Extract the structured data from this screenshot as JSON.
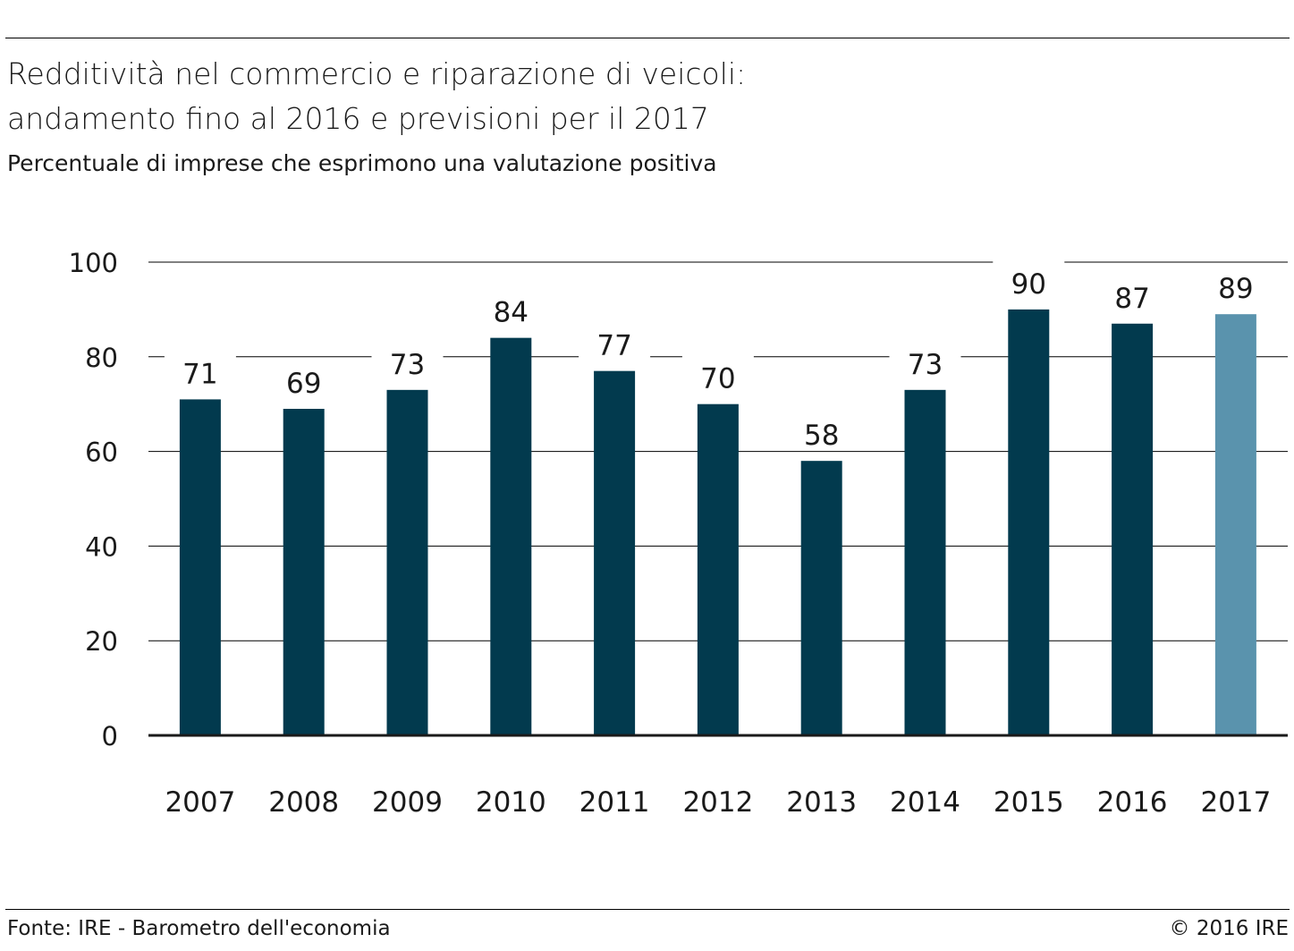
{
  "header": {
    "title_line1": "Redditività nel commercio e riparazione di veicoli:",
    "title_line2": "andamento fino al 2016 e previsioni per il 2017",
    "subtitle": "Percentuale di imprese che esprimono una valutazione positiva"
  },
  "footer": {
    "source": "Fonte: IRE - Barometro dell'economia",
    "copyright": "© 2016 IRE"
  },
  "colors": {
    "bar": "#023a4e",
    "forecast_bar": "#5a93ad",
    "grid": "#000000",
    "text": "#1a1a1a"
  },
  "chart_data": {
    "type": "bar",
    "categories": [
      "2007",
      "2008",
      "2009",
      "2010",
      "2011",
      "2012",
      "2013",
      "2014",
      "2015",
      "2016",
      "2017"
    ],
    "values": [
      71,
      69,
      73,
      84,
      77,
      70,
      58,
      73,
      90,
      87,
      89
    ],
    "data_labels": [
      "71",
      "69",
      "73",
      "84",
      "77",
      "70",
      "58",
      "73",
      "90",
      "87",
      "89"
    ],
    "forecast_category": "2017",
    "ylim": [
      0,
      100
    ],
    "yticks": [
      0,
      20,
      40,
      60,
      80,
      100
    ],
    "xlabel": "",
    "ylabel": "",
    "grid": true
  }
}
